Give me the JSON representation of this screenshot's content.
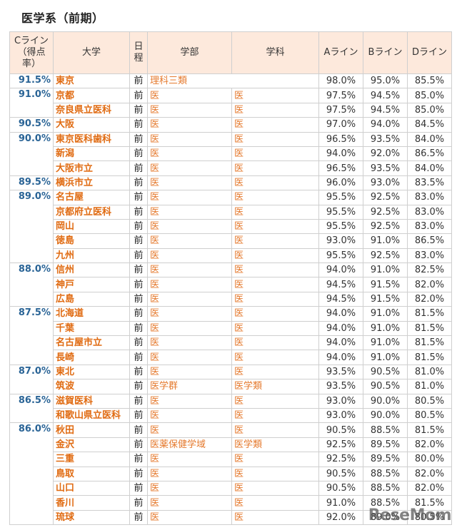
{
  "page": {
    "title": "医学系（前期）",
    "watermark": "ReseMom"
  },
  "table": {
    "headers": {
      "cline": "Cライン（得点率）",
      "university": "大学",
      "schedule": "日程",
      "faculty": "学部",
      "department": "学科",
      "aline": "Aライン",
      "bline": "Bライン",
      "dline": "Dライン"
    },
    "groups": [
      {
        "cline": "91.5%",
        "rows": [
          {
            "university": "東京",
            "schedule": "前",
            "faculty": "理科三類",
            "department": "",
            "a": "98.0%",
            "b": "95.0%",
            "d": "85.5%"
          }
        ]
      },
      {
        "cline": "91.0%",
        "rows": [
          {
            "university": "京都",
            "schedule": "前",
            "faculty": "医",
            "department": "医",
            "a": "97.5%",
            "b": "94.5%",
            "d": "85.0%"
          },
          {
            "university": "奈良県立医科",
            "schedule": "前",
            "faculty": "医",
            "department": "医",
            "a": "97.5%",
            "b": "94.5%",
            "d": "85.0%"
          }
        ]
      },
      {
        "cline": "90.5%",
        "rows": [
          {
            "university": "大阪",
            "schedule": "前",
            "faculty": "医",
            "department": "医",
            "a": "97.0%",
            "b": "94.0%",
            "d": "84.5%"
          }
        ]
      },
      {
        "cline": "90.0%",
        "rows": [
          {
            "university": "東京医科歯科",
            "schedule": "前",
            "faculty": "医",
            "department": "医",
            "a": "96.5%",
            "b": "93.5%",
            "d": "84.0%"
          },
          {
            "university": "新潟",
            "schedule": "前",
            "faculty": "医",
            "department": "医",
            "a": "94.0%",
            "b": "92.0%",
            "d": "86.5%"
          },
          {
            "university": "大阪市立",
            "schedule": "前",
            "faculty": "医",
            "department": "医",
            "a": "96.5%",
            "b": "93.5%",
            "d": "84.0%"
          }
        ]
      },
      {
        "cline": "89.5%",
        "rows": [
          {
            "university": "横浜市立",
            "schedule": "前",
            "faculty": "医",
            "department": "医",
            "a": "96.0%",
            "b": "93.0%",
            "d": "83.5%"
          }
        ]
      },
      {
        "cline": "89.0%",
        "rows": [
          {
            "university": "名古屋",
            "schedule": "前",
            "faculty": "医",
            "department": "医",
            "a": "95.5%",
            "b": "92.5%",
            "d": "83.0%"
          },
          {
            "university": "京都府立医科",
            "schedule": "前",
            "faculty": "医",
            "department": "医",
            "a": "95.5%",
            "b": "92.5%",
            "d": "83.0%"
          },
          {
            "university": "岡山",
            "schedule": "前",
            "faculty": "医",
            "department": "医",
            "a": "95.5%",
            "b": "92.5%",
            "d": "83.0%"
          },
          {
            "university": "徳島",
            "schedule": "前",
            "faculty": "医",
            "department": "医",
            "a": "93.0%",
            "b": "91.0%",
            "d": "86.5%"
          },
          {
            "university": "九州",
            "schedule": "前",
            "faculty": "医",
            "department": "医",
            "a": "95.5%",
            "b": "92.5%",
            "d": "83.0%"
          }
        ]
      },
      {
        "cline": "88.0%",
        "rows": [
          {
            "university": "信州",
            "schedule": "前",
            "faculty": "医",
            "department": "医",
            "a": "94.0%",
            "b": "91.0%",
            "d": "82.5%"
          },
          {
            "university": "神戸",
            "schedule": "前",
            "faculty": "医",
            "department": "医",
            "a": "94.5%",
            "b": "91.5%",
            "d": "82.0%"
          },
          {
            "university": "広島",
            "schedule": "前",
            "faculty": "医",
            "department": "医",
            "a": "94.5%",
            "b": "91.5%",
            "d": "82.0%"
          }
        ]
      },
      {
        "cline": "87.5%",
        "rows": [
          {
            "university": "北海道",
            "schedule": "前",
            "faculty": "医",
            "department": "医",
            "a": "94.0%",
            "b": "91.0%",
            "d": "81.5%"
          },
          {
            "university": "千葉",
            "schedule": "前",
            "faculty": "医",
            "department": "医",
            "a": "94.0%",
            "b": "91.0%",
            "d": "81.5%"
          },
          {
            "university": "名古屋市立",
            "schedule": "前",
            "faculty": "医",
            "department": "医",
            "a": "94.0%",
            "b": "91.0%",
            "d": "81.5%"
          },
          {
            "university": "長崎",
            "schedule": "前",
            "faculty": "医",
            "department": "医",
            "a": "94.0%",
            "b": "91.0%",
            "d": "81.5%"
          }
        ]
      },
      {
        "cline": "87.0%",
        "rows": [
          {
            "university": "東北",
            "schedule": "前",
            "faculty": "医",
            "department": "医",
            "a": "93.5%",
            "b": "90.5%",
            "d": "81.0%"
          },
          {
            "university": "筑波",
            "schedule": "前",
            "faculty": "医学群",
            "department": "医学類",
            "a": "93.5%",
            "b": "90.5%",
            "d": "81.0%"
          }
        ]
      },
      {
        "cline": "86.5%",
        "rows": [
          {
            "university": "滋賀医科",
            "schedule": "前",
            "faculty": "医",
            "department": "医",
            "a": "93.0%",
            "b": "90.0%",
            "d": "80.5%"
          },
          {
            "university": "和歌山県立医科",
            "schedule": "前",
            "faculty": "医",
            "department": "医",
            "a": "93.0%",
            "b": "90.0%",
            "d": "80.5%"
          }
        ]
      },
      {
        "cline": "86.0%",
        "rows": [
          {
            "university": "秋田",
            "schedule": "前",
            "faculty": "医",
            "department": "医",
            "a": "90.5%",
            "b": "88.5%",
            "d": "81.5%"
          },
          {
            "university": "金沢",
            "schedule": "前",
            "faculty": "医薬保健学域",
            "department": "医学類",
            "a": "92.5%",
            "b": "89.5%",
            "d": "82.0%"
          },
          {
            "university": "三重",
            "schedule": "前",
            "faculty": "医",
            "department": "医",
            "a": "92.5%",
            "b": "89.5%",
            "d": "80.0%"
          },
          {
            "university": "鳥取",
            "schedule": "前",
            "faculty": "医",
            "department": "医",
            "a": "90.5%",
            "b": "88.5%",
            "d": "82.0%"
          },
          {
            "university": "山口",
            "schedule": "前",
            "faculty": "医",
            "department": "医",
            "a": "90.5%",
            "b": "88.5%",
            "d": "82.0%"
          },
          {
            "university": "香川",
            "schedule": "前",
            "faculty": "医",
            "department": "医",
            "a": "91.0%",
            "b": "88.5%",
            "d": "81.5%"
          },
          {
            "university": "琉球",
            "schedule": "前",
            "faculty": "医",
            "department": "医",
            "a": "92.0%",
            "b": "89.0%",
            "d": "80.5%"
          }
        ]
      }
    ]
  },
  "colors": {
    "header_bg": "#fde9dc",
    "cline_text": "#2a6496",
    "university_text": "#e06b12",
    "faculty_text": "#e57a2e",
    "border": "#cfcfcf"
  }
}
